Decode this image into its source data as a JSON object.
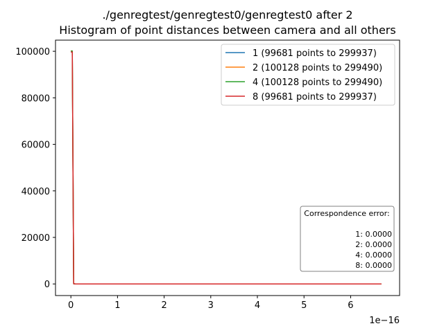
{
  "window": {
    "title_line1": "./genregtest/genregtest0/genregtest0 after 2",
    "title_line2": "Histogram of point distances between camera and all others"
  },
  "chart_data": {
    "type": "line",
    "title": "./genregtest/genregtest0/genregtest0 after 2\nHistogram of point distances between camera and all others",
    "xlabel": "",
    "ylabel": "",
    "x_scale_label": "1e−16",
    "x_scale": 1e-16,
    "xlim": [
      -0.33,
      7.05
    ],
    "ylim": [
      -4990,
      104790
    ],
    "x_ticks": [
      0,
      1,
      2,
      3,
      4,
      5,
      6
    ],
    "x_tick_labels": [
      "0",
      "1",
      "2",
      "3",
      "4",
      "5",
      "6"
    ],
    "y_ticks": [
      0,
      20000,
      40000,
      60000,
      80000,
      100000
    ],
    "y_tick_labels": [
      "0",
      "20000",
      "40000",
      "60000",
      "80000",
      "100000"
    ],
    "grid": false,
    "legend_position": "top-right",
    "series": [
      {
        "name": "1 (99681 points to 299937)",
        "color": "#1f77b4",
        "x": [
          0.0,
          0.03,
          0.06,
          0.1,
          6.66
        ],
        "y": [
          99681,
          99681,
          50,
          0,
          0
        ]
      },
      {
        "name": "2 (100128 points to 299490)",
        "color": "#ff7f0e",
        "x": [
          0.0,
          0.03,
          0.06,
          0.1,
          6.66
        ],
        "y": [
          100128,
          100128,
          50,
          0,
          0
        ]
      },
      {
        "name": "4 (100128 points to 299490)",
        "color": "#2ca02c",
        "x": [
          0.0,
          0.03,
          0.06,
          0.1,
          6.66
        ],
        "y": [
          100128,
          100128,
          50,
          0,
          0
        ]
      },
      {
        "name": "8 (99681 points to 299937)",
        "color": "#d62728",
        "x": [
          0.0,
          0.03,
          0.06,
          0.1,
          6.66
        ],
        "y": [
          99681,
          99681,
          50,
          0,
          0
        ]
      }
    ],
    "annotation": {
      "title": "Correspondence error:",
      "lines": [
        "1: 0.0000",
        "2: 0.0000",
        "4: 0.0000",
        "8: 0.0000"
      ]
    }
  }
}
